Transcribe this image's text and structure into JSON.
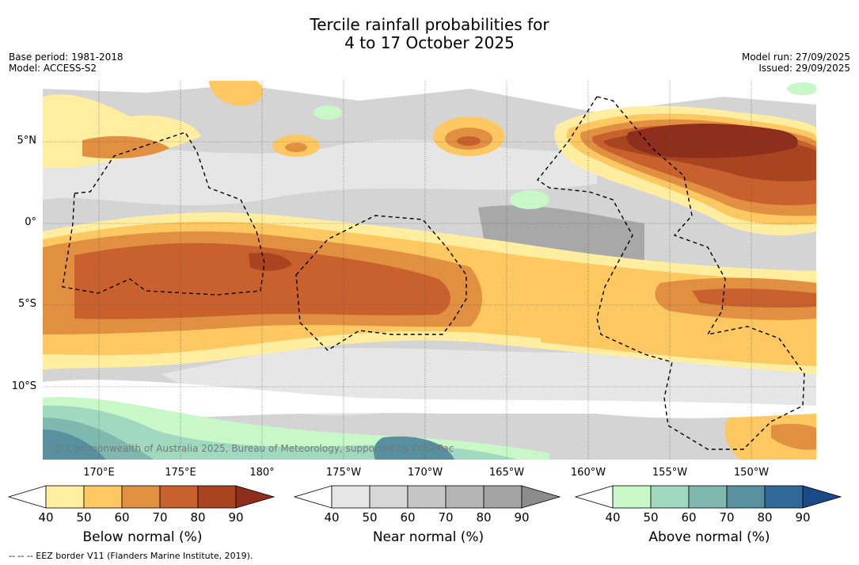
{
  "title_line1": "Tercile rainfall probabilities for",
  "title_line2": "4 to 17 October 2025",
  "base_period": "Base period: 1981-2018",
  "model": "Model: ACCESS-S2",
  "model_run": "Model run: 27/09/2025",
  "issued": "Issued: 29/09/2025",
  "copyright": "© Commonwealth of Australia 2025, Bureau of Meteorology, supported by COSPPac",
  "footnote": "--  --  -- EEZ border V11 (Flanders Marine Institute, 2019).",
  "lat_labels": [
    "5°N",
    "0°",
    "5°S",
    "10°S"
  ],
  "lon_labels": [
    "170°E",
    "175°E",
    "180°",
    "175°W",
    "170°W",
    "165°W",
    "160°W",
    "155°W",
    "150°W"
  ],
  "colorbars": [
    {
      "title": "Below normal (%)",
      "ticks": [
        "40",
        "50",
        "60",
        "70",
        "80",
        "90"
      ],
      "colors": [
        "#ffffff",
        "#ffeea0",
        "#fdc862",
        "#e09040",
        "#c8612e",
        "#a94421",
        "#8e2e1c"
      ]
    },
    {
      "title": "Near normal (%)",
      "ticks": [
        "40",
        "50",
        "60",
        "70",
        "80",
        "90"
      ],
      "colors": [
        "#ffffff",
        "#e6e6e6",
        "#d7d7d7",
        "#c5c5c5",
        "#b4b4b4",
        "#a4a4a4",
        "#8c8c8c"
      ]
    },
    {
      "title": "Above normal (%)",
      "ticks": [
        "40",
        "50",
        "60",
        "70",
        "80",
        "90"
      ],
      "colors": [
        "#ffffff",
        "#c8f7c8",
        "#a0d8c0",
        "#80b8b0",
        "#5890a0",
        "#306898",
        "#1a4a88"
      ]
    }
  ]
}
